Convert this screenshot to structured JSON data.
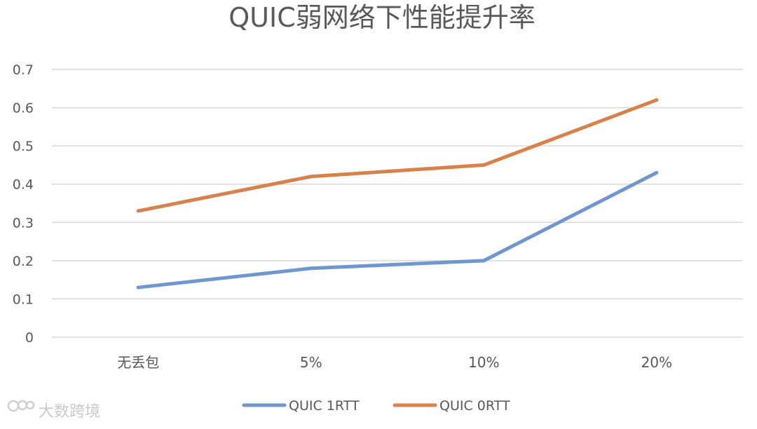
{
  "chart_data": {
    "type": "line",
    "title": "QUIC弱网络下性能提升率",
    "categories": [
      "无丢包",
      "5%",
      "10%",
      "20%"
    ],
    "series": [
      {
        "name": "QUIC 1RTT",
        "color": "#6f97cf",
        "values": [
          0.13,
          0.18,
          0.2,
          0.43
        ]
      },
      {
        "name": "QUIC 0RTT",
        "color": "#d9814a",
        "values": [
          0.33,
          0.42,
          0.45,
          0.62
        ]
      }
    ],
    "ylim": [
      0,
      0.7
    ],
    "yticks": [
      "0",
      "0.1",
      "0.2",
      "0.3",
      "0.4",
      "0.5",
      "0.6",
      "0.7"
    ],
    "grid": true,
    "legend": "bottom"
  },
  "watermark": {
    "text": "大数跨境"
  }
}
